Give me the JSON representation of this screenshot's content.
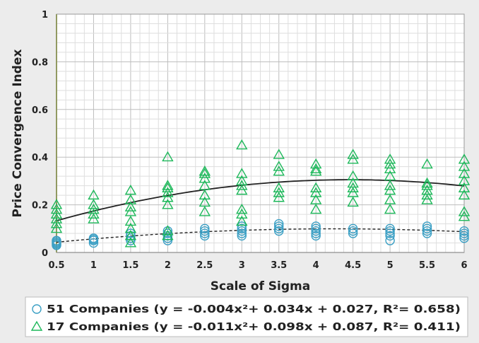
{
  "chart_data": {
    "type": "scatter",
    "xlabel": "Scale of Sigma",
    "ylabel": "Price Convergence Index",
    "xlim": [
      0.5,
      6
    ],
    "ylim": [
      0,
      1
    ],
    "x_ticks": [
      "0.5",
      "1",
      "1.5",
      "2",
      "2.5",
      "3",
      "3.5",
      "4",
      "4.5",
      "5",
      "5.5",
      "6"
    ],
    "y_ticks": [
      "0",
      "0.2",
      "0.4",
      "0.6",
      "0.8",
      "1"
    ],
    "grid": true,
    "legend_position": "bottom",
    "series": [
      {
        "name": "51 Companies (y = -0.004x²+ 0.034x + 0.027, R²= 0.658)",
        "marker": "circle",
        "color": "#3a9fc4",
        "trend": {
          "coefficients": [
            -0.004,
            0.034,
            0.027
          ],
          "style": "dashed"
        },
        "points": [
          [
            0.5,
            0.03
          ],
          [
            0.5,
            0.04
          ],
          [
            0.5,
            0.05
          ],
          [
            0.5,
            0.035
          ],
          [
            0.5,
            0.045
          ],
          [
            1,
            0.04
          ],
          [
            1,
            0.05
          ],
          [
            1,
            0.06
          ],
          [
            1,
            0.055
          ],
          [
            1.5,
            0.05
          ],
          [
            1.5,
            0.06
          ],
          [
            1.5,
            0.07
          ],
          [
            1.5,
            0.08
          ],
          [
            2,
            0.05
          ],
          [
            2,
            0.06
          ],
          [
            2,
            0.07
          ],
          [
            2,
            0.08
          ],
          [
            2,
            0.09
          ],
          [
            2.5,
            0.07
          ],
          [
            2.5,
            0.08
          ],
          [
            2.5,
            0.09
          ],
          [
            2.5,
            0.1
          ],
          [
            3,
            0.07
          ],
          [
            3,
            0.08
          ],
          [
            3,
            0.09
          ],
          [
            3,
            0.1
          ],
          [
            3,
            0.11
          ],
          [
            3.5,
            0.09
          ],
          [
            3.5,
            0.1
          ],
          [
            3.5,
            0.11
          ],
          [
            3.5,
            0.12
          ],
          [
            4,
            0.07
          ],
          [
            4,
            0.08
          ],
          [
            4,
            0.09
          ],
          [
            4,
            0.1
          ],
          [
            4,
            0.11
          ],
          [
            4.5,
            0.08
          ],
          [
            4.5,
            0.09
          ],
          [
            4.5,
            0.1
          ],
          [
            5,
            0.05
          ],
          [
            5,
            0.07
          ],
          [
            5,
            0.08
          ],
          [
            5,
            0.09
          ],
          [
            5,
            0.1
          ],
          [
            5.5,
            0.08
          ],
          [
            5.5,
            0.09
          ],
          [
            5.5,
            0.1
          ],
          [
            5.5,
            0.11
          ],
          [
            6,
            0.06
          ],
          [
            6,
            0.07
          ],
          [
            6,
            0.08
          ],
          [
            6,
            0.09
          ]
        ]
      },
      {
        "name": "17 Companies (y = -0.011x²+ 0.098x + 0.087, R²= 0.411)",
        "marker": "triangle",
        "color": "#1db85a",
        "trend": {
          "coefficients": [
            -0.011,
            0.098,
            0.087
          ],
          "style": "solid"
        },
        "points": [
          [
            0.5,
            0.1
          ],
          [
            0.5,
            0.12
          ],
          [
            0.5,
            0.14
          ],
          [
            0.5,
            0.16
          ],
          [
            0.5,
            0.18
          ],
          [
            0.5,
            0.2
          ],
          [
            1,
            0.14
          ],
          [
            1,
            0.16
          ],
          [
            1,
            0.18
          ],
          [
            1,
            0.2
          ],
          [
            1,
            0.24
          ],
          [
            1.5,
            0.04
          ],
          [
            1.5,
            0.07
          ],
          [
            1.5,
            0.1
          ],
          [
            1.5,
            0.13
          ],
          [
            1.5,
            0.17
          ],
          [
            1.5,
            0.19
          ],
          [
            1.5,
            0.22
          ],
          [
            1.5,
            0.26
          ],
          [
            2,
            0.07
          ],
          [
            2,
            0.09
          ],
          [
            2,
            0.2
          ],
          [
            2,
            0.23
          ],
          [
            2,
            0.25
          ],
          [
            2,
            0.27
          ],
          [
            2,
            0.28
          ],
          [
            2,
            0.4
          ],
          [
            2.5,
            0.17
          ],
          [
            2.5,
            0.21
          ],
          [
            2.5,
            0.24
          ],
          [
            2.5,
            0.28
          ],
          [
            2.5,
            0.31
          ],
          [
            2.5,
            0.33
          ],
          [
            2.5,
            0.34
          ],
          [
            3,
            0.13
          ],
          [
            3,
            0.16
          ],
          [
            3,
            0.18
          ],
          [
            3,
            0.26
          ],
          [
            3,
            0.28
          ],
          [
            3,
            0.3
          ],
          [
            3,
            0.33
          ],
          [
            3,
            0.45
          ],
          [
            3.5,
            0.23
          ],
          [
            3.5,
            0.25
          ],
          [
            3.5,
            0.27
          ],
          [
            3.5,
            0.34
          ],
          [
            3.5,
            0.36
          ],
          [
            3.5,
            0.41
          ],
          [
            4,
            0.18
          ],
          [
            4,
            0.22
          ],
          [
            4,
            0.25
          ],
          [
            4,
            0.27
          ],
          [
            4,
            0.34
          ],
          [
            4,
            0.35
          ],
          [
            4,
            0.37
          ],
          [
            4.5,
            0.21
          ],
          [
            4.5,
            0.25
          ],
          [
            4.5,
            0.27
          ],
          [
            4.5,
            0.29
          ],
          [
            4.5,
            0.32
          ],
          [
            4.5,
            0.39
          ],
          [
            4.5,
            0.41
          ],
          [
            5,
            0.18
          ],
          [
            5,
            0.22
          ],
          [
            5,
            0.26
          ],
          [
            5,
            0.28
          ],
          [
            5,
            0.32
          ],
          [
            5,
            0.35
          ],
          [
            5,
            0.37
          ],
          [
            5,
            0.39
          ],
          [
            5.5,
            0.22
          ],
          [
            5.5,
            0.24
          ],
          [
            5.5,
            0.26
          ],
          [
            5.5,
            0.28
          ],
          [
            5.5,
            0.29
          ],
          [
            5.5,
            0.37
          ],
          [
            6,
            0.15
          ],
          [
            6,
            0.17
          ],
          [
            6,
            0.24
          ],
          [
            6,
            0.27
          ],
          [
            6,
            0.3
          ],
          [
            6,
            0.33
          ],
          [
            6,
            0.36
          ],
          [
            6,
            0.39
          ]
        ]
      }
    ]
  }
}
